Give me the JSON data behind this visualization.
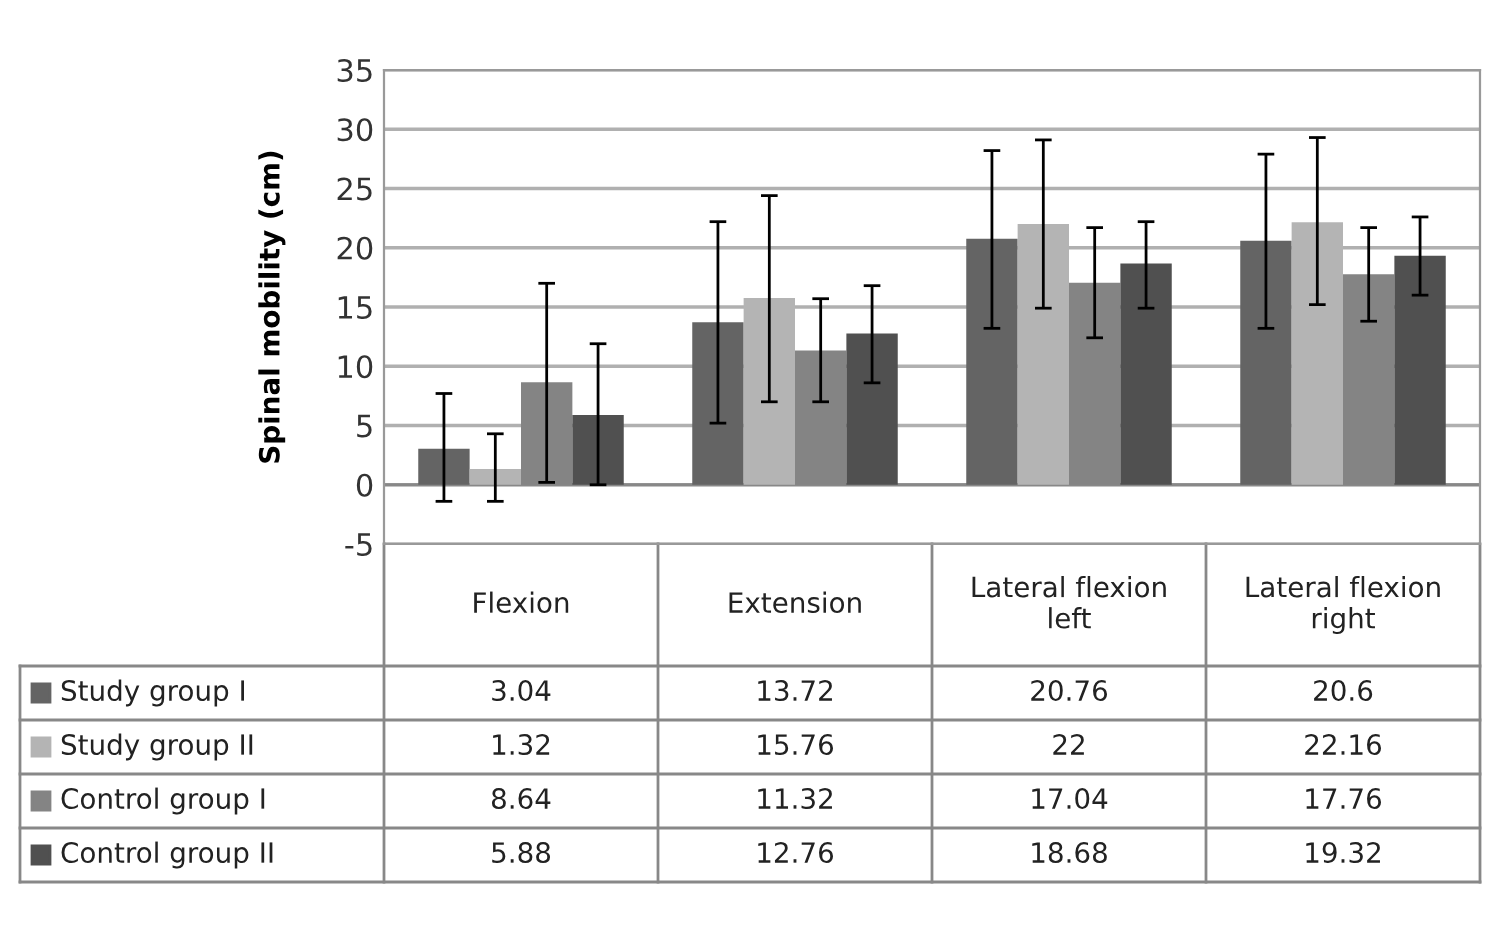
{
  "chart_data": {
    "type": "bar",
    "ylabel": "Spinal mobility (cm)",
    "categories": [
      "Flexion",
      "Extension",
      "Lateral flexion left",
      "Lateral flexion right"
    ],
    "series": [
      {
        "name": "Study group I",
        "color": "#646464",
        "values": [
          3.04,
          13.72,
          20.76,
          20.6
        ],
        "errors": [
          [
            -1.4,
            7.7
          ],
          [
            5.2,
            22.2
          ],
          [
            13.2,
            28.2
          ],
          [
            13.2,
            27.9
          ]
        ]
      },
      {
        "name": "Study group II",
        "color": "#b4b4b4",
        "values": [
          1.32,
          15.76,
          22,
          22.16
        ],
        "errors": [
          [
            -1.4,
            4.3
          ],
          [
            7.0,
            24.4
          ],
          [
            14.9,
            29.1
          ],
          [
            15.2,
            29.3
          ]
        ]
      },
      {
        "name": "Control group I",
        "color": "#848484",
        "values": [
          8.64,
          11.32,
          17.04,
          17.76
        ],
        "errors": [
          [
            0.2,
            17.0
          ],
          [
            7.0,
            15.7
          ],
          [
            12.4,
            21.7
          ],
          [
            13.8,
            21.7
          ]
        ]
      },
      {
        "name": "Control group II",
        "color": "#505050",
        "values": [
          5.88,
          12.76,
          18.68,
          19.32
        ],
        "errors": [
          [
            0.0,
            11.9
          ],
          [
            8.6,
            16.8
          ],
          [
            14.9,
            22.2
          ],
          [
            16.0,
            22.6
          ]
        ]
      }
    ],
    "ylim": [
      -5,
      35
    ],
    "yticks": [
      -5,
      0,
      5,
      10,
      15,
      20,
      25,
      30,
      35
    ],
    "grid": "y",
    "data_labels": true,
    "legend": "bottom left"
  }
}
